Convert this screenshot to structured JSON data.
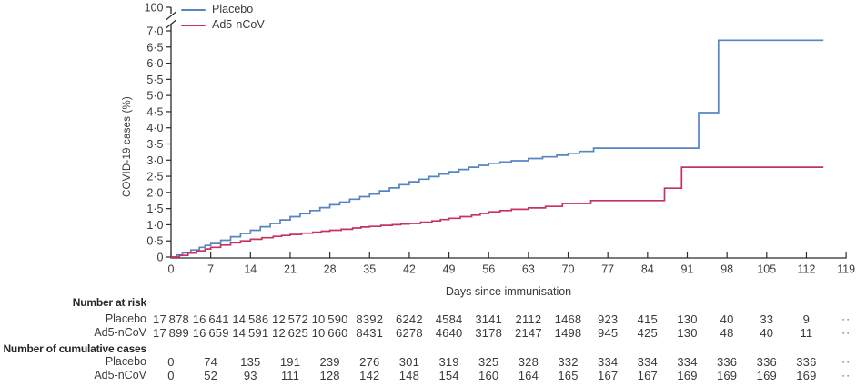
{
  "figure": {
    "xlabel": "Days since immunisation",
    "ylabel": "COVID-19 cases (%)"
  },
  "chart_data": {
    "type": "line",
    "subtype": "kaplan-meier-step",
    "title": "",
    "xlabel": "Days since immunisation",
    "ylabel": "COVID-19 cases (%)",
    "xlim": [
      0,
      119
    ],
    "ylim": [
      0,
      7
    ],
    "grid": false,
    "legend_position": "top-left",
    "x_ticks": [
      0,
      7,
      14,
      21,
      28,
      35,
      42,
      49,
      56,
      63,
      70,
      77,
      84,
      91,
      98,
      105,
      112,
      119
    ],
    "y_ticks": [
      {
        "value": 0.0,
        "label": "0"
      },
      {
        "value": 0.5,
        "label": "0·5"
      },
      {
        "value": 1.0,
        "label": "1·0"
      },
      {
        "value": 1.5,
        "label": "1·5"
      },
      {
        "value": 2.0,
        "label": "2·0"
      },
      {
        "value": 2.5,
        "label": "2·5"
      },
      {
        "value": 3.0,
        "label": "3·0"
      },
      {
        "value": 3.5,
        "label": "3·5"
      },
      {
        "value": 4.0,
        "label": "4·0"
      },
      {
        "value": 4.5,
        "label": "4·5"
      },
      {
        "value": 5.0,
        "label": "5·0"
      },
      {
        "value": 5.5,
        "label": "5·5"
      },
      {
        "value": 6.0,
        "label": "6·0"
      },
      {
        "value": 6.5,
        "label": "6·5"
      },
      {
        "value": 7.0,
        "label": "7·0"
      }
    ],
    "y_axis_break": {
      "top_label": "100"
    },
    "series": [
      {
        "name": "Placebo",
        "color": "#5585c2",
        "steps": [
          [
            0,
            0
          ],
          [
            1,
            0.06
          ],
          [
            2,
            0.13
          ],
          [
            3.5,
            0.22
          ],
          [
            5,
            0.3
          ],
          [
            6,
            0.36
          ],
          [
            7,
            0.42
          ],
          [
            8.75,
            0.52
          ],
          [
            10.5,
            0.63
          ],
          [
            12.25,
            0.73
          ],
          [
            14,
            0.83
          ],
          [
            15.75,
            0.94
          ],
          [
            17.5,
            1.04
          ],
          [
            19.25,
            1.15
          ],
          [
            21,
            1.25
          ],
          [
            22.75,
            1.34
          ],
          [
            24.5,
            1.44
          ],
          [
            26.25,
            1.53
          ],
          [
            28,
            1.62
          ],
          [
            29.75,
            1.7
          ],
          [
            31.5,
            1.79
          ],
          [
            33.25,
            1.87
          ],
          [
            35,
            1.95
          ],
          [
            36.75,
            2.05
          ],
          [
            38.5,
            2.14
          ],
          [
            40.25,
            2.24
          ],
          [
            42,
            2.33
          ],
          [
            43.75,
            2.41
          ],
          [
            45.5,
            2.49
          ],
          [
            47.25,
            2.57
          ],
          [
            49,
            2.64
          ],
          [
            50.75,
            2.71
          ],
          [
            52.5,
            2.78
          ],
          [
            54.25,
            2.84
          ],
          [
            56,
            2.9
          ],
          [
            58,
            2.94
          ],
          [
            60,
            2.98
          ],
          [
            63,
            3.05
          ],
          [
            65.5,
            3.1
          ],
          [
            68,
            3.15
          ],
          [
            70,
            3.21
          ],
          [
            72,
            3.27
          ],
          [
            74.5,
            3.37
          ],
          [
            93,
            4.47
          ],
          [
            96.5,
            6.71
          ],
          [
            115,
            6.71
          ]
        ]
      },
      {
        "name": "Ad5-nCoV",
        "color": "#c73360",
        "steps": [
          [
            0,
            0
          ],
          [
            1.5,
            0.05
          ],
          [
            3,
            0.12
          ],
          [
            4.5,
            0.19
          ],
          [
            6,
            0.25
          ],
          [
            7,
            0.3
          ],
          [
            8.75,
            0.37
          ],
          [
            10.5,
            0.44
          ],
          [
            12.25,
            0.5
          ],
          [
            14,
            0.55
          ],
          [
            16,
            0.6
          ],
          [
            18,
            0.64
          ],
          [
            19.5,
            0.67
          ],
          [
            21,
            0.7
          ],
          [
            23,
            0.74
          ],
          [
            25,
            0.77
          ],
          [
            26.5,
            0.8
          ],
          [
            28,
            0.83
          ],
          [
            30,
            0.86
          ],
          [
            32,
            0.9
          ],
          [
            33.5,
            0.93
          ],
          [
            35,
            0.95
          ],
          [
            37,
            0.98
          ],
          [
            39,
            1.0
          ],
          [
            40.5,
            1.02
          ],
          [
            42,
            1.04
          ],
          [
            44,
            1.08
          ],
          [
            46,
            1.12
          ],
          [
            47.5,
            1.16
          ],
          [
            49,
            1.2
          ],
          [
            51,
            1.25
          ],
          [
            53,
            1.3
          ],
          [
            54.5,
            1.35
          ],
          [
            56,
            1.4
          ],
          [
            58,
            1.44
          ],
          [
            60,
            1.48
          ],
          [
            63,
            1.52
          ],
          [
            66,
            1.57
          ],
          [
            69,
            1.66
          ],
          [
            74,
            1.75
          ],
          [
            87,
            2.13
          ],
          [
            90,
            2.78
          ],
          [
            115,
            2.78
          ]
        ]
      }
    ]
  },
  "tables": {
    "days": [
      0,
      7,
      14,
      21,
      28,
      35,
      42,
      49,
      56,
      63,
      70,
      77,
      84,
      91,
      98,
      105,
      112
    ],
    "trailing_ellipsis": "··",
    "sections": [
      {
        "header": "Number at risk",
        "rows": [
          {
            "label": "Placebo",
            "values": [
              "17 878",
              "16 641",
              "14 586",
              "12 572",
              "10 590",
              "8392",
              "6242",
              "4584",
              "3141",
              "2112",
              "1468",
              "923",
              "415",
              "130",
              "40",
              "33",
              "9"
            ]
          },
          {
            "label": "Ad5-nCoV",
            "values": [
              "17 899",
              "16 659",
              "14 591",
              "12 625",
              "10 660",
              "8431",
              "6278",
              "4640",
              "3178",
              "2147",
              "1498",
              "945",
              "425",
              "130",
              "48",
              "40",
              "11"
            ]
          }
        ]
      },
      {
        "header": "Number of cumulative cases",
        "rows": [
          {
            "label": "Placebo",
            "values": [
              "0",
              "74",
              "135",
              "191",
              "239",
              "276",
              "301",
              "319",
              "325",
              "328",
              "332",
              "334",
              "334",
              "334",
              "336",
              "336",
              "336"
            ]
          },
          {
            "label": "Ad5-nCoV",
            "values": [
              "0",
              "52",
              "93",
              "111",
              "128",
              "142",
              "148",
              "154",
              "160",
              "164",
              "165",
              "167",
              "167",
              "169",
              "169",
              "169",
              "169"
            ]
          }
        ]
      }
    ]
  },
  "colors": {
    "placebo": "#5585c2",
    "ad5_ncov": "#c73360",
    "axis": "#2b2b2b",
    "text": "#3a3a3a"
  }
}
